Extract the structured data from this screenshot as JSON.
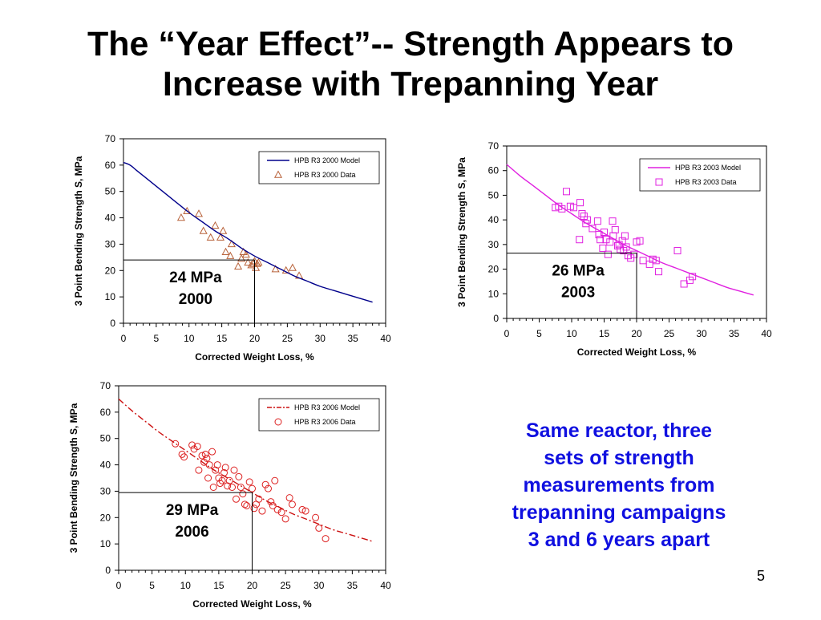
{
  "slide": {
    "title_line1": "The “Year Effect”-- Strength Appears to",
    "title_line2": "Increase with Trepanning Year",
    "note_lines": [
      "Same reactor, three",
      "sets of strength",
      "measurements from",
      "trepanning campaigns",
      "3 and 6 years apart"
    ],
    "page_number": "5"
  },
  "chart_data": [
    {
      "type": "scatter",
      "xlabel": "Corrected Weight Loss, %",
      "ylabel": "3 Point Bending Strength S, MPa",
      "xlim": [
        0,
        40
      ],
      "ylim": [
        0,
        70
      ],
      "x_ticks": [
        0,
        5,
        10,
        15,
        20,
        25,
        30,
        35,
        40
      ],
      "y_ticks": [
        0,
        10,
        20,
        30,
        40,
        50,
        60,
        70
      ],
      "grid": false,
      "legend_position": "top-right",
      "marker_color": "#b8623a",
      "callout": {
        "lines": [
          "24 MPa",
          "2000"
        ],
        "x": 20,
        "y": 24
      },
      "series": [
        {
          "name": "HPB R3 2000 Model",
          "kind": "line",
          "line_style": "solid",
          "color": "#00008b",
          "x": [
            0,
            1,
            2,
            4,
            6,
            8,
            10,
            12,
            14,
            16,
            18,
            20,
            22,
            24,
            26,
            28,
            30,
            32,
            34,
            36,
            38
          ],
          "y": [
            61,
            60,
            58,
            54,
            50,
            46,
            42,
            38.5,
            35,
            32,
            28.5,
            25.5,
            23,
            20.5,
            18,
            16,
            14,
            12.5,
            11,
            9.5,
            8
          ]
        },
        {
          "name": "HPB R3 2000 Data",
          "kind": "markers",
          "marker": "triangle",
          "color": "#b8623a",
          "x": [
            8.8,
            9.7,
            11.5,
            12.2,
            13.3,
            14,
            14.8,
            15.2,
            15.6,
            16.5,
            16.3,
            17.5,
            18,
            18.3,
            18.7,
            19,
            19.5,
            19.8,
            20,
            20.2,
            20.4,
            20.6,
            23.2,
            24.8,
            25.8,
            26.8
          ],
          "y": [
            40,
            42.5,
            41.5,
            35,
            32.5,
            37,
            32.5,
            35,
            27,
            30,
            25.5,
            21.5,
            24.5,
            27,
            26,
            23,
            22,
            22.5,
            23.5,
            21,
            22.5,
            23,
            20.5,
            20,
            21,
            18
          ]
        }
      ]
    },
    {
      "type": "scatter",
      "xlabel": "Corrected Weight Loss, %",
      "ylabel": "3 Point Bending Strength S, MPa",
      "xlim": [
        0,
        40
      ],
      "ylim": [
        0,
        70
      ],
      "x_ticks": [
        0,
        5,
        10,
        15,
        20,
        25,
        30,
        35,
        40
      ],
      "y_ticks": [
        0,
        10,
        20,
        30,
        40,
        50,
        60,
        70
      ],
      "grid": false,
      "legend_position": "top-right",
      "marker_color": "#e020e0",
      "callout": {
        "lines": [
          "26 MPa",
          "2003"
        ],
        "x": 20,
        "y": 26.5
      },
      "series": [
        {
          "name": "HPB R3 2003 Model",
          "kind": "line",
          "line_style": "solid",
          "color": "#e020e0",
          "x": [
            0,
            2,
            4,
            6,
            8,
            10,
            12,
            14,
            16,
            18,
            20,
            22,
            24,
            26,
            28,
            30,
            32,
            34,
            36,
            38
          ],
          "y": [
            62.5,
            58,
            54,
            50,
            46,
            42.5,
            39,
            36,
            33,
            30,
            27.5,
            25,
            22.5,
            20.5,
            18.5,
            16.5,
            14.5,
            12.5,
            11,
            9.5
          ],
          "smooth": true
        },
        {
          "name": "HPB R3 2003 Data",
          "kind": "markers",
          "marker": "square",
          "color": "#e020e0",
          "x": [
            7.5,
            8,
            8.5,
            9.2,
            9.8,
            10.3,
            11.2,
            11.3,
            11.6,
            11.9,
            12.2,
            12.4,
            13.2,
            14,
            14.2,
            14.4,
            14.8,
            15,
            15.3,
            15.6,
            15.9,
            16.3,
            16.4,
            16.7,
            17.1,
            17.3,
            17.5,
            17.8,
            18,
            18.2,
            18.4,
            18.7,
            19.1,
            19.6,
            20,
            20.5,
            21,
            22,
            22.5,
            23,
            23.4,
            26.3,
            27.3,
            28.2,
            28.6
          ],
          "y": [
            45,
            45.5,
            44.5,
            51.5,
            45.5,
            45,
            32,
            47,
            42.5,
            41.5,
            38.5,
            40,
            36.5,
            39.5,
            34,
            32,
            28.5,
            35,
            32,
            26,
            31,
            39.5,
            33.5,
            36,
            29.5,
            30,
            28,
            31.5,
            27.5,
            33.5,
            29,
            25.5,
            24.5,
            26,
            31,
            31.5,
            23.5,
            22,
            24,
            23.5,
            19,
            27.5,
            14,
            15.5,
            17
          ]
        }
      ]
    },
    {
      "type": "scatter",
      "xlabel": "Corrected Weight Loss, %",
      "ylabel": "3 Point Bending Strength S, MPa",
      "xlim": [
        0,
        40
      ],
      "ylim": [
        0,
        70
      ],
      "x_ticks": [
        0,
        5,
        10,
        15,
        20,
        25,
        30,
        35,
        40
      ],
      "y_ticks": [
        0,
        10,
        20,
        30,
        40,
        50,
        60,
        70
      ],
      "grid": false,
      "legend_position": "top-right",
      "marker_color": "#dd2222",
      "callout": {
        "lines": [
          "29 MPa",
          "2006"
        ],
        "x": 20,
        "y": 29.5
      },
      "series": [
        {
          "name": "HPB R3 2006 Model",
          "kind": "line",
          "line_style": "dashdot",
          "color": "#cc1111",
          "x": [
            0,
            2,
            4,
            6,
            8,
            10,
            12,
            14,
            16,
            18,
            20,
            22,
            24,
            26,
            28,
            30,
            32,
            34,
            36,
            38
          ],
          "y": [
            65,
            60.5,
            56.5,
            52.5,
            49,
            45.5,
            42,
            38.5,
            35.5,
            32.5,
            29.5,
            26.5,
            24,
            21.5,
            19.5,
            17.5,
            15.5,
            14,
            12.5,
            11
          ]
        },
        {
          "name": "HPB R3 2006 Data",
          "kind": "markers",
          "marker": "circle",
          "color": "#dd2222",
          "x": [
            8.5,
            9.5,
            9.8,
            11,
            11.3,
            11.8,
            12,
            12.5,
            12.8,
            13,
            13.2,
            13.4,
            13.6,
            14,
            14.2,
            14.5,
            14.8,
            15,
            15.2,
            15.5,
            15.8,
            16,
            16.3,
            16.6,
            17,
            17.3,
            17.6,
            18,
            18.3,
            18.6,
            18.9,
            19.2,
            19.6,
            20,
            20.3,
            20.6,
            21,
            21.5,
            22,
            22.4,
            22.8,
            23.1,
            23.4,
            23.8,
            24.4,
            25,
            25.6,
            26,
            27.5,
            28,
            29.5,
            30,
            31
          ],
          "y": [
            48,
            44,
            43,
            47.5,
            46,
            47,
            38,
            43.5,
            41,
            44,
            42.5,
            35,
            40,
            45,
            31.5,
            38,
            40,
            35,
            33,
            34,
            37,
            39,
            32,
            34,
            31.5,
            38,
            27,
            35.5,
            31.5,
            29,
            25,
            24.5,
            33.5,
            31,
            23.5,
            25,
            27,
            22.5,
            32.5,
            31,
            26,
            24.5,
            34,
            23,
            22,
            19.5,
            27.5,
            25,
            23,
            22.5,
            20,
            16,
            12
          ]
        }
      ]
    }
  ]
}
